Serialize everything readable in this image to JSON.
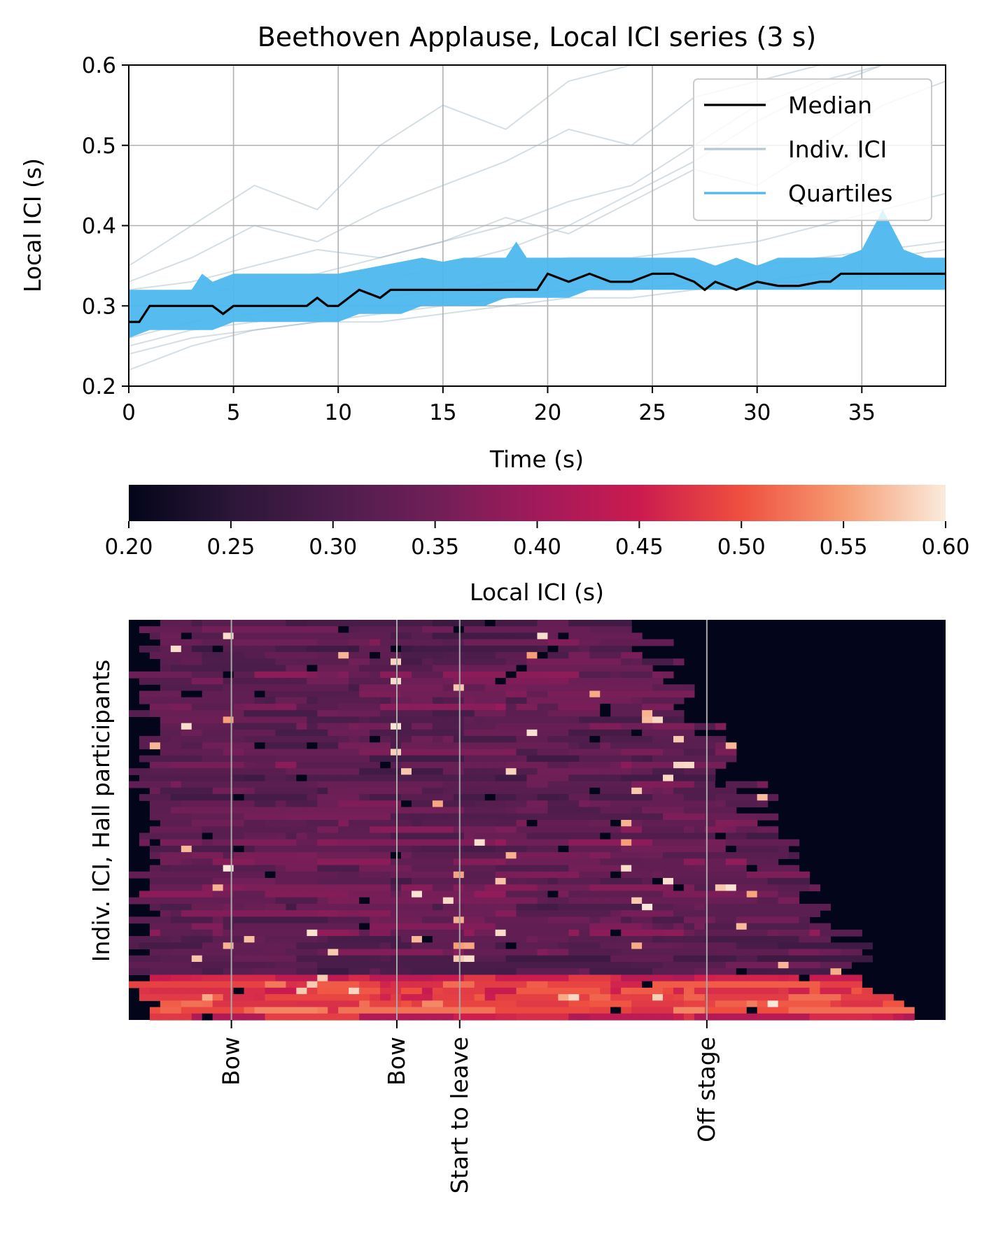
{
  "chart_data": [
    {
      "type": "line",
      "title": "Beethoven Applause, Local ICI series (3 s)",
      "xlabel": "Time (s)",
      "ylabel": "Local ICI (s)",
      "xlim": [
        0,
        39
      ],
      "ylim": [
        0.2,
        0.6
      ],
      "xticks": [
        0,
        5,
        10,
        15,
        20,
        25,
        30,
        35
      ],
      "yticks": [
        0.2,
        0.3,
        0.4,
        0.5,
        0.6
      ],
      "xtick_labels": [
        "0",
        "5",
        "10",
        "15",
        "20",
        "25",
        "30",
        "35"
      ],
      "ytick_labels": [
        "0.2",
        "0.3",
        "0.4",
        "0.5",
        "0.6"
      ],
      "grid": true,
      "legend_placement": "top-right",
      "legend": [
        "Median",
        "Indiv. ICI",
        "Quartiles"
      ],
      "colors": {
        "median": "#000000",
        "individual": "#9fb6c3",
        "quartiles": "#4db8ee"
      },
      "series": [
        {
          "name": "Median",
          "x": [
            0,
            0.5,
            1,
            2,
            3,
            4,
            4.5,
            5,
            6,
            7,
            8,
            8.5,
            9,
            9.5,
            10,
            11,
            12,
            12.5,
            13,
            14,
            15,
            16,
            17,
            18,
            19,
            19.5,
            20,
            21,
            22,
            23,
            24,
            25,
            26,
            27,
            27.5,
            28,
            29,
            30,
            31,
            32,
            33,
            33.5,
            34,
            35,
            36,
            37,
            38,
            39
          ],
          "values": [
            0.28,
            0.28,
            0.3,
            0.3,
            0.3,
            0.3,
            0.29,
            0.3,
            0.3,
            0.3,
            0.3,
            0.3,
            0.31,
            0.3,
            0.3,
            0.32,
            0.31,
            0.32,
            0.32,
            0.32,
            0.32,
            0.32,
            0.32,
            0.32,
            0.32,
            0.32,
            0.34,
            0.33,
            0.34,
            0.33,
            0.33,
            0.34,
            0.34,
            0.33,
            0.32,
            0.33,
            0.32,
            0.33,
            0.325,
            0.325,
            0.33,
            0.33,
            0.34,
            0.34,
            0.34,
            0.34,
            0.34,
            0.34
          ]
        },
        {
          "name": "Quartiles",
          "x": [
            0,
            1,
            2,
            3,
            3.5,
            4,
            5,
            6,
            7,
            8,
            9,
            10,
            11,
            12,
            13,
            14,
            15,
            16,
            17,
            18,
            18.5,
            19,
            20,
            21,
            22,
            23,
            24,
            25,
            26,
            27,
            28,
            29,
            30,
            31,
            32,
            33,
            34,
            35,
            36,
            37,
            38,
            39
          ],
          "upper": [
            0.32,
            0.32,
            0.32,
            0.32,
            0.34,
            0.33,
            0.34,
            0.34,
            0.34,
            0.34,
            0.34,
            0.34,
            0.345,
            0.35,
            0.355,
            0.36,
            0.355,
            0.36,
            0.36,
            0.36,
            0.38,
            0.36,
            0.36,
            0.36,
            0.36,
            0.36,
            0.36,
            0.36,
            0.36,
            0.36,
            0.35,
            0.36,
            0.35,
            0.36,
            0.36,
            0.36,
            0.36,
            0.37,
            0.42,
            0.37,
            0.36,
            0.36
          ],
          "lower": [
            0.26,
            0.27,
            0.27,
            0.27,
            0.27,
            0.27,
            0.28,
            0.28,
            0.28,
            0.28,
            0.28,
            0.28,
            0.29,
            0.29,
            0.29,
            0.3,
            0.3,
            0.3,
            0.3,
            0.31,
            0.31,
            0.31,
            0.31,
            0.31,
            0.32,
            0.32,
            0.32,
            0.32,
            0.32,
            0.32,
            0.32,
            0.32,
            0.32,
            0.32,
            0.32,
            0.32,
            0.32,
            0.32,
            0.32,
            0.32,
            0.32,
            0.32
          ]
        },
        {
          "name": "Indiv. ICI",
          "individual_count": 12,
          "x": [
            0,
            3,
            6,
            9,
            12,
            15,
            18,
            21,
            24,
            27,
            30,
            33,
            36,
            39
          ],
          "lines": [
            [
              0.26,
              0.28,
              0.3,
              0.29,
              0.31,
              0.32,
              0.33,
              0.34,
              0.33,
              0.34,
              0.33,
              0.34,
              0.35,
              0.34
            ],
            [
              0.3,
              0.31,
              0.33,
              0.34,
              0.36,
              0.38,
              0.4,
              0.43,
              0.45,
              0.5,
              0.55,
              0.58,
              0.6,
              0.6
            ],
            [
              0.28,
              0.29,
              0.29,
              0.3,
              0.3,
              0.31,
              0.31,
              0.32,
              0.32,
              0.33,
              0.33,
              0.34,
              0.34,
              0.34
            ],
            [
              0.24,
              0.26,
              0.27,
              0.28,
              0.29,
              0.3,
              0.31,
              0.32,
              0.33,
              0.34,
              0.35,
              0.36,
              0.37,
              0.38
            ],
            [
              0.33,
              0.36,
              0.4,
              0.38,
              0.42,
              0.45,
              0.48,
              0.52,
              0.5,
              0.56,
              0.58,
              0.6,
              0.6,
              0.6
            ],
            [
              0.22,
              0.25,
              0.27,
              0.28,
              0.28,
              0.29,
              0.3,
              0.31,
              0.31,
              0.32,
              0.33,
              0.33,
              0.34,
              0.34
            ],
            [
              0.31,
              0.32,
              0.32,
              0.33,
              0.34,
              0.34,
              0.35,
              0.36,
              0.36,
              0.37,
              0.38,
              0.4,
              0.42,
              0.44
            ],
            [
              0.29,
              0.3,
              0.31,
              0.32,
              0.33,
              0.35,
              0.37,
              0.4,
              0.44,
              0.48,
              0.53,
              0.57,
              0.6,
              0.6
            ],
            [
              0.27,
              0.28,
              0.29,
              0.3,
              0.31,
              0.32,
              0.33,
              0.33,
              0.34,
              0.35,
              0.35,
              0.36,
              0.36,
              0.37
            ],
            [
              0.35,
              0.4,
              0.45,
              0.42,
              0.5,
              0.55,
              0.52,
              0.58,
              0.6,
              0.6,
              0.6,
              0.6,
              0.6,
              0.6
            ],
            [
              0.25,
              0.27,
              0.28,
              0.29,
              0.3,
              0.3,
              0.31,
              0.32,
              0.32,
              0.33,
              0.33,
              0.33,
              0.34,
              0.34
            ],
            [
              0.32,
              0.33,
              0.35,
              0.37,
              0.36,
              0.38,
              0.41,
              0.39,
              0.43,
              0.47,
              0.45,
              0.5,
              0.55,
              0.58
            ]
          ]
        }
      ]
    },
    {
      "type": "heatmap",
      "ylabel": "Indiv. ICI, Hall participants",
      "colorbar": {
        "label": "Local ICI (s)",
        "range": [
          0.2,
          0.6
        ],
        "ticks": [
          0.2,
          0.25,
          0.3,
          0.35,
          0.4,
          0.45,
          0.5,
          0.55,
          0.6
        ],
        "tick_labels": [
          "0.20",
          "0.25",
          "0.30",
          "0.35",
          "0.40",
          "0.45",
          "0.50",
          "0.55",
          "0.60"
        ],
        "colormap": "rocket"
      },
      "x_range_s": [
        0,
        39
      ],
      "grid_cols": 78,
      "grid_rows": 62,
      "events": [
        {
          "label": "Bow",
          "time": 4.9
        },
        {
          "label": "Bow",
          "time": 12.8
        },
        {
          "label": "Start to leave",
          "time": 15.8
        },
        {
          "label": "Off stage",
          "time": 27.6
        }
      ]
    }
  ]
}
